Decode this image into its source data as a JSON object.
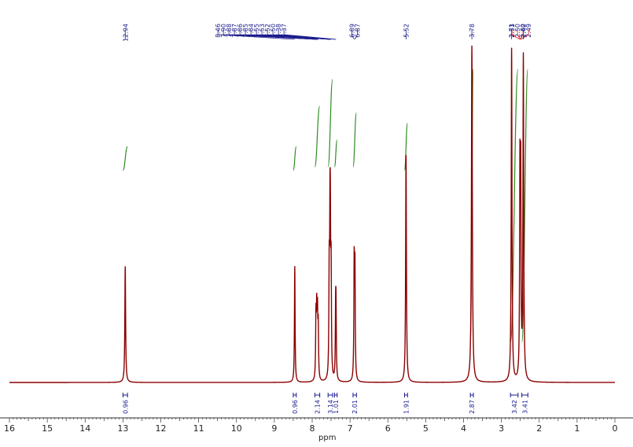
{
  "chart_data": {
    "type": "line",
    "xlabel": "ppm",
    "xlim": [
      16,
      0
    ],
    "x_axis_reversed": true,
    "x_ticks": [
      "16",
      "15",
      "14",
      "13",
      "12",
      "11",
      "10",
      "9",
      "8",
      "7",
      "6",
      "5",
      "4",
      "3",
      "2",
      "1",
      "0"
    ],
    "grid": false,
    "legend": "none",
    "colors": {
      "spectrum": "#8b0000",
      "integral_curve": "#2e8b22",
      "peak_label": "#1a1a8c",
      "peak_label_highlight": "#e0201a",
      "integral_label": "#1a1a8c"
    },
    "peaks": [
      {
        "ppm": 12.94,
        "height": 0.345,
        "width": 0.012
      },
      {
        "ppm": 8.46,
        "height": 0.345,
        "width": 0.01
      },
      {
        "ppm": 7.9,
        "height": 0.18,
        "width": 0.01
      },
      {
        "ppm": 7.88,
        "height": 0.185,
        "width": 0.01
      },
      {
        "ppm": 7.86,
        "height": 0.175,
        "width": 0.01
      },
      {
        "ppm": 7.84,
        "height": 0.15,
        "width": 0.01
      },
      {
        "ppm": 7.55,
        "height": 0.3,
        "width": 0.01
      },
      {
        "ppm": 7.53,
        "height": 0.36,
        "width": 0.01
      },
      {
        "ppm": 7.52,
        "height": 0.33,
        "width": 0.01
      },
      {
        "ppm": 7.5,
        "height": 0.3,
        "width": 0.01
      },
      {
        "ppm": 7.38,
        "height": 0.18,
        "width": 0.01
      },
      {
        "ppm": 7.37,
        "height": 0.17,
        "width": 0.01
      },
      {
        "ppm": 6.89,
        "height": 0.34,
        "width": 0.01
      },
      {
        "ppm": 6.87,
        "height": 0.32,
        "width": 0.01
      },
      {
        "ppm": 5.52,
        "height": 0.675,
        "width": 0.012
      },
      {
        "ppm": 3.78,
        "height": 1.0,
        "width": 0.014
      },
      {
        "ppm": 2.73,
        "height": 0.99,
        "width": 0.012
      },
      {
        "ppm": 2.51,
        "height": 0.59,
        "width": 0.01
      },
      {
        "ppm": 2.49,
        "height": 0.57,
        "width": 0.01
      },
      {
        "ppm": 2.42,
        "height": 0.96,
        "width": 0.012
      }
    ],
    "peak_labels": [
      {
        "ppm": 12.94,
        "text": "12.94",
        "highlight": false,
        "group": "a"
      },
      {
        "ppm": 8.46,
        "text": "8.46",
        "highlight": false,
        "group": "b"
      },
      {
        "ppm": 7.9,
        "text": "7.90",
        "highlight": false,
        "group": "b"
      },
      {
        "ppm": 7.88,
        "text": "7.88",
        "highlight": false,
        "group": "b"
      },
      {
        "ppm": 7.87,
        "text": "7.87",
        "highlight": false,
        "group": "b"
      },
      {
        "ppm": 7.86,
        "text": "7.86",
        "highlight": false,
        "group": "b"
      },
      {
        "ppm": 7.85,
        "text": "7.85",
        "highlight": false,
        "group": "b"
      },
      {
        "ppm": 7.84,
        "text": "7.84",
        "highlight": false,
        "group": "b"
      },
      {
        "ppm": 7.55,
        "text": "7.55",
        "highlight": false,
        "group": "b"
      },
      {
        "ppm": 7.53,
        "text": "7.53",
        "highlight": false,
        "group": "b"
      },
      {
        "ppm": 7.52,
        "text": "7.52",
        "highlight": false,
        "group": "b"
      },
      {
        "ppm": 7.5,
        "text": "7.50",
        "highlight": false,
        "group": "b"
      },
      {
        "ppm": 7.38,
        "text": "7.38",
        "highlight": false,
        "group": "b"
      },
      {
        "ppm": 7.37,
        "text": "7.37",
        "highlight": false,
        "group": "b"
      },
      {
        "ppm": 6.89,
        "text": "6.89",
        "highlight": false,
        "group": "c"
      },
      {
        "ppm": 6.87,
        "text": "6.87",
        "highlight": false,
        "group": "c"
      },
      {
        "ppm": 5.52,
        "text": "5.52",
        "highlight": false,
        "group": "d"
      },
      {
        "ppm": 3.78,
        "text": "3.78",
        "highlight": false,
        "group": "e"
      },
      {
        "ppm": 2.73,
        "text": "2.73",
        "highlight": false,
        "group": "f"
      },
      {
        "ppm": 2.51,
        "text": "2.51",
        "highlight": true,
        "group": "g"
      },
      {
        "ppm": 2.5,
        "text": "2.50",
        "highlight": true,
        "group": "g"
      },
      {
        "ppm": 2.5,
        "text": "2.50",
        "highlight": true,
        "group": "g"
      },
      {
        "ppm": 2.49,
        "text": "2.49",
        "highlight": true,
        "group": "g"
      },
      {
        "ppm": 2.42,
        "text": "2.42",
        "highlight": false,
        "group": "h"
      }
    ],
    "integrals": [
      {
        "ppm_from": 13.0,
        "ppm_to": 12.88,
        "value": "0.96",
        "curve_low": 0.37,
        "curve_high": 0.3
      },
      {
        "ppm_from": 8.5,
        "ppm_to": 8.42,
        "value": "0.96",
        "curve_low": 0.37,
        "curve_high": 0.3
      },
      {
        "ppm_from": 7.93,
        "ppm_to": 7.8,
        "value": "2.14",
        "curve_low": 0.36,
        "curve_high": 0.18
      },
      {
        "ppm_from": 7.58,
        "ppm_to": 7.46,
        "value": "3.14",
        "curve_low": 0.36,
        "curve_high": 0.1
      },
      {
        "ppm_from": 7.41,
        "ppm_to": 7.34,
        "value": "1.01",
        "curve_low": 0.36,
        "curve_high": 0.28
      },
      {
        "ppm_from": 6.92,
        "ppm_to": 6.83,
        "value": "2.01",
        "curve_low": 0.36,
        "curve_high": 0.2
      },
      {
        "ppm_from": 5.56,
        "ppm_to": 5.48,
        "value": "1.91",
        "curve_low": 0.37,
        "curve_high": 0.23
      },
      {
        "ppm_from": 3.82,
        "ppm_to": 3.74,
        "value": "2.87",
        "curve_low": 0.87,
        "curve_high": 0.07
      },
      {
        "ppm_from": 2.76,
        "ppm_to": 2.56,
        "value": "3.42",
        "curve_low": 0.88,
        "curve_high": 0.07
      },
      {
        "ppm_from": 2.46,
        "ppm_to": 2.3,
        "value": "3.41",
        "curve_low": 0.88,
        "curve_high": 0.07
      }
    ]
  }
}
